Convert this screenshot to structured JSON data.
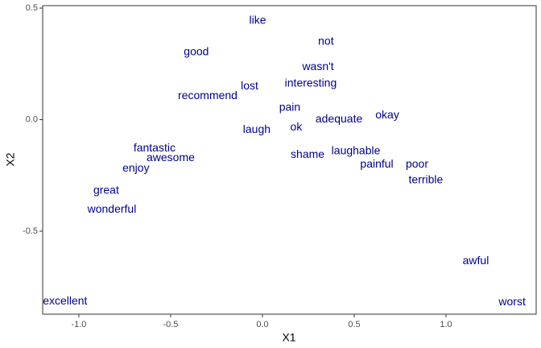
{
  "chart_data": {
    "type": "scatter",
    "xlabel": "X1",
    "ylabel": "X2",
    "color": "#00008b",
    "grid": false,
    "labels": [
      "like",
      "not",
      "good",
      "wasn't",
      "interesting",
      "lost",
      "recommend",
      "pain",
      "okay",
      "adequate",
      "laugh",
      "ok",
      "fantastic",
      "awesome",
      "shame",
      "laughable",
      "painful",
      "poor",
      "enjoy",
      "terrible",
      "great",
      "wonderful",
      "awful",
      "excellent",
      "worst"
    ],
    "x": [
      -0.026,
      0.346,
      -0.36,
      0.303,
      0.263,
      -0.07,
      -0.298,
      0.149,
      0.68,
      0.417,
      -0.031,
      0.184,
      -0.588,
      -0.5,
      0.246,
      0.509,
      0.623,
      0.842,
      -0.689,
      0.89,
      -0.851,
      -0.82,
      1.162,
      -1.075,
      1.36
    ],
    "values": [
      0.444,
      0.35,
      0.303,
      0.235,
      0.162,
      0.148,
      0.105,
      0.054,
      0.018,
      0.0,
      -0.047,
      -0.036,
      -0.13,
      -0.173,
      -0.159,
      -0.141,
      -0.202,
      -0.202,
      -0.22,
      -0.271,
      -0.318,
      -0.404,
      -0.635,
      -0.816,
      -0.819
    ],
    "xlim": [
      -1.197,
      1.491
    ],
    "ylim": [
      -0.872,
      0.511
    ],
    "xticks": [
      {
        "value": -1,
        "label": "-1.0"
      },
      -0.5,
      {
        "value": 0,
        "label": "0.0"
      },
      0.5,
      {
        "value": 1,
        "label": "1.0"
      }
    ],
    "yticks": [
      0.5,
      {
        "value": 0,
        "label": "0.0"
      },
      -0.5
    ]
  }
}
